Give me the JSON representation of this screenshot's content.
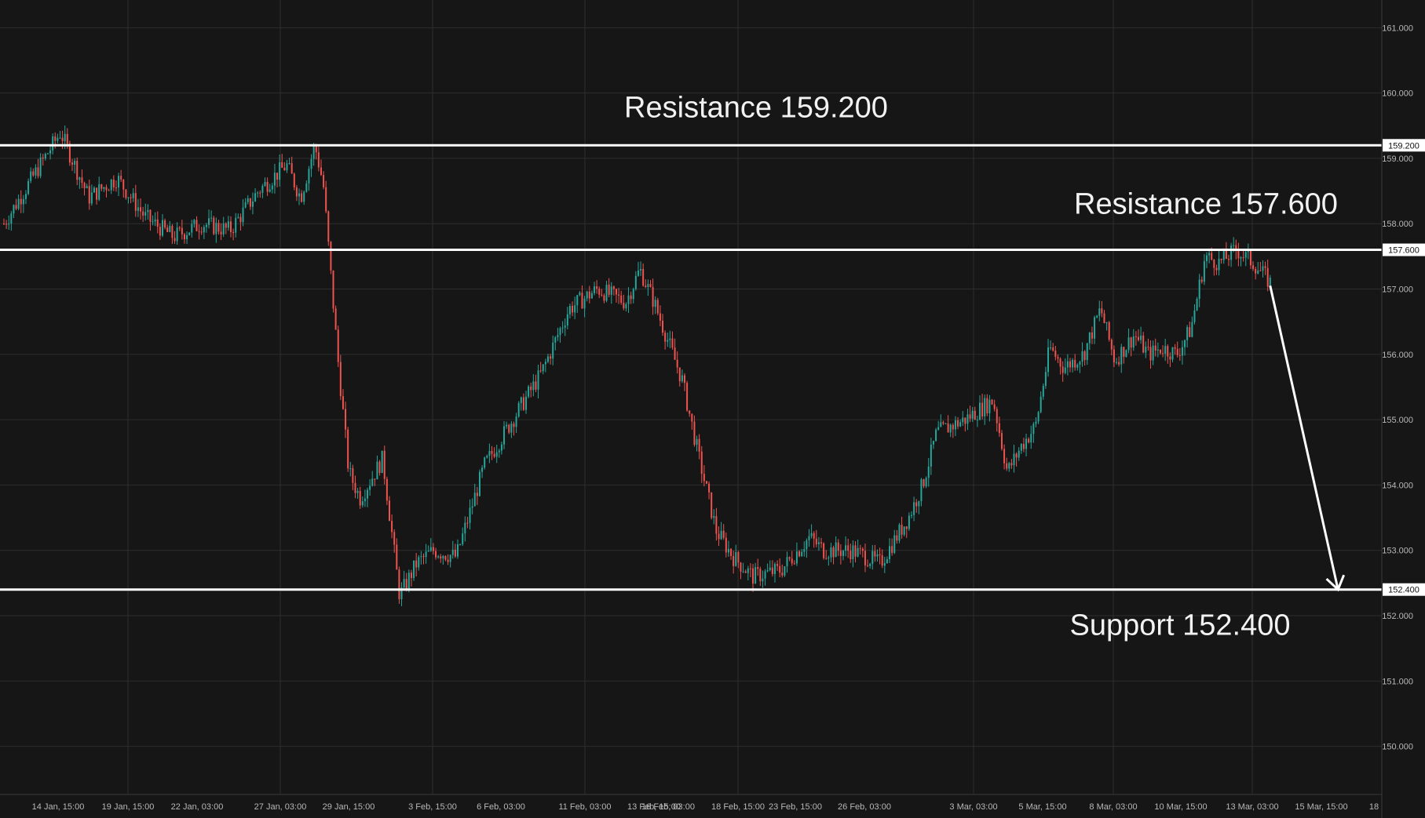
{
  "chart_data": {
    "type": "candlestick",
    "x_tick_labels": [
      "14 Jan, 15:00",
      "19 Jan, 15:00",
      "22 Jan, 03:00",
      "27 Jan, 03:00",
      "29 Jan, 15:00",
      "3 Feb, 15:00",
      "6 Feb, 03:00",
      "11 Feb, 03:00",
      "13 Feb, 15:00",
      "16 Feb, 03:00",
      "18 Feb, 15:00",
      "23 Feb, 15:00",
      "26 Feb, 03:00",
      "3 Mar, 03:00",
      "5 Mar, 15:00",
      "8 Mar, 03:00",
      "10 Mar, 15:00",
      "13 Mar, 03:00",
      "15 Mar, 15:00",
      "18"
    ],
    "y_ticks": [
      "161.000",
      "160.000",
      "159.000",
      "158.000",
      "157.000",
      "156.000",
      "155.000",
      "154.000",
      "153.000",
      "152.000",
      "151.000",
      "150.000"
    ],
    "ylim": [
      149.35,
      161.4
    ],
    "grid": true,
    "colors": {
      "background": "#161616",
      "grid": "#2e2e2e",
      "up": "#26a69a",
      "down": "#ef5350",
      "level_line": "#ffffff",
      "axis_text": "#b8b8b8"
    },
    "price_path": [
      [
        0,
        158.0
      ],
      [
        2,
        159.4
      ],
      [
        3,
        158.4
      ],
      [
        4,
        158.7
      ],
      [
        5,
        158.1
      ],
      [
        6,
        157.8
      ],
      [
        7,
        158.0
      ],
      [
        8,
        157.9
      ],
      [
        9,
        158.5
      ],
      [
        10,
        158.9
      ],
      [
        10.5,
        158.4
      ],
      [
        11,
        159.2
      ],
      [
        11.3,
        158.6
      ],
      [
        11.8,
        156.0
      ],
      [
        12.2,
        154.2
      ],
      [
        12.6,
        153.8
      ],
      [
        13.4,
        154.4
      ],
      [
        14.0,
        152.3
      ],
      [
        14.6,
        152.8
      ],
      [
        15.2,
        153.0
      ],
      [
        16.0,
        152.9
      ],
      [
        17.0,
        154.3
      ],
      [
        18.0,
        155.0
      ],
      [
        19.0,
        155.7
      ],
      [
        20.0,
        156.7
      ],
      [
        21.0,
        157.0
      ],
      [
        22.0,
        156.8
      ],
      [
        22.5,
        157.3
      ],
      [
        23.0,
        156.8
      ],
      [
        24.0,
        155.6
      ],
      [
        24.6,
        154.4
      ],
      [
        25.2,
        153.3
      ],
      [
        25.8,
        152.9
      ],
      [
        26.5,
        152.6
      ],
      [
        27.5,
        152.7
      ],
      [
        28.5,
        153.2
      ],
      [
        29.0,
        153.0
      ],
      [
        30.0,
        153.0
      ],
      [
        31.0,
        152.8
      ],
      [
        32.0,
        153.5
      ],
      [
        32.5,
        154.0
      ],
      [
        33.0,
        154.8
      ],
      [
        34.0,
        155.0
      ],
      [
        35.0,
        155.3
      ],
      [
        35.5,
        154.2
      ],
      [
        36.0,
        154.6
      ],
      [
        36.5,
        154.9
      ],
      [
        37.0,
        156.1
      ],
      [
        37.5,
        155.8
      ],
      [
        38.2,
        156.0
      ],
      [
        38.8,
        156.7
      ],
      [
        39.3,
        155.9
      ],
      [
        40.0,
        156.3
      ],
      [
        40.5,
        156.0
      ],
      [
        41.0,
        156.1
      ],
      [
        41.5,
        156.0
      ],
      [
        42.0,
        156.4
      ],
      [
        42.5,
        157.5
      ],
      [
        43.0,
        157.4
      ],
      [
        43.6,
        157.6
      ],
      [
        44.2,
        157.4
      ],
      [
        44.8,
        157.1
      ]
    ],
    "series_x_range": [
      0,
      44.8
    ],
    "levels": [
      {
        "value": 159.2,
        "label": "159.200",
        "annotation": "Resistance 159.200"
      },
      {
        "value": 157.6,
        "label": "157.600",
        "annotation": "Resistance 157.600"
      },
      {
        "value": 152.4,
        "label": "152.400",
        "annotation": "Support 152.400"
      }
    ],
    "projection_arrow": {
      "from": [
        157.05,
        44.8
      ],
      "to": [
        152.4,
        47.2
      ]
    }
  }
}
